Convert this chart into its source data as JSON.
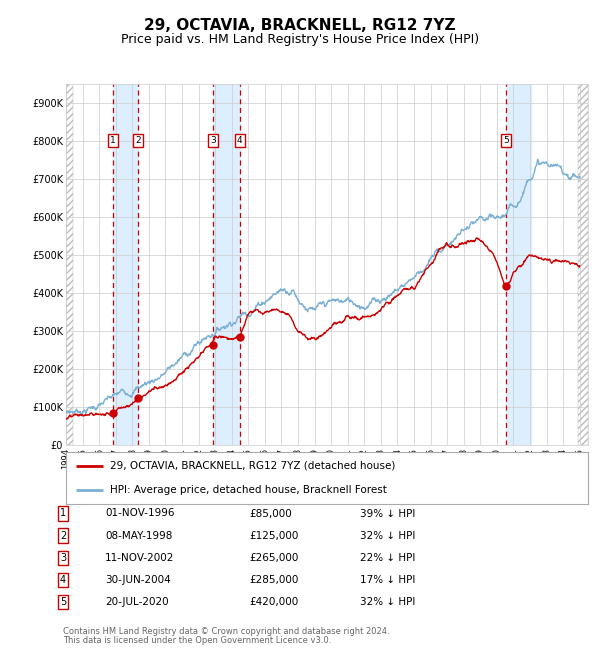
{
  "title": "29, OCTAVIA, BRACKNELL, RG12 7YZ",
  "subtitle": "Price paid vs. HM Land Registry's House Price Index (HPI)",
  "legend_red": "29, OCTAVIA, BRACKNELL, RG12 7YZ (detached house)",
  "legend_blue": "HPI: Average price, detached house, Bracknell Forest",
  "footer1": "Contains HM Land Registry data © Crown copyright and database right 2024.",
  "footer2": "This data is licensed under the Open Government Licence v3.0.",
  "transactions": [
    {
      "num": 1,
      "date": 1996.84,
      "price": 85000,
      "label": "01-NOV-1996",
      "pct": "39% ↓ HPI"
    },
    {
      "num": 2,
      "date": 1998.36,
      "price": 125000,
      "label": "08-MAY-1998",
      "pct": "32% ↓ HPI"
    },
    {
      "num": 3,
      "date": 2002.86,
      "price": 265000,
      "label": "11-NOV-2002",
      "pct": "22% ↓ HPI"
    },
    {
      "num": 4,
      "date": 2004.49,
      "price": 285000,
      "label": "30-JUN-2004",
      "pct": "17% ↓ HPI"
    },
    {
      "num": 5,
      "date": 2020.55,
      "price": 420000,
      "label": "20-JUL-2020",
      "pct": "32% ↓ HPI"
    }
  ],
  "xmin": 1994.0,
  "xmax": 2025.5,
  "ymin": 0,
  "ymax": 950000,
  "yticks": [
    0,
    100000,
    200000,
    300000,
    400000,
    500000,
    600000,
    700000,
    800000,
    900000
  ],
  "ytick_labels": [
    "£0",
    "£100K",
    "£200K",
    "£300K",
    "£400K",
    "£500K",
    "£600K",
    "£700K",
    "£800K",
    "£900K"
  ],
  "xticks": [
    1994,
    1995,
    1996,
    1997,
    1998,
    1999,
    2000,
    2001,
    2002,
    2003,
    2004,
    2005,
    2006,
    2007,
    2008,
    2009,
    2010,
    2011,
    2012,
    2013,
    2014,
    2015,
    2016,
    2017,
    2018,
    2019,
    2020,
    2021,
    2022,
    2023,
    2024,
    2025
  ],
  "red_color": "#cc0000",
  "blue_color": "#7ab0d4",
  "bg_color": "#ffffff",
  "grid_color": "#cccccc",
  "shade_color": "#ddeeff",
  "title_fontsize": 11,
  "subtitle_fontsize": 9,
  "hpi_knots_x": [
    1994,
    1995,
    1996,
    1997,
    1998,
    1999,
    2000,
    2001,
    2002,
    2003,
    2004,
    2005,
    2006,
    2007,
    2007.7,
    2008,
    2009,
    2009.5,
    2010,
    2011,
    2012,
    2013,
    2014,
    2015,
    2016,
    2017,
    2018,
    2019,
    2020,
    2021,
    2021.5,
    2022,
    2022.5,
    2023,
    2024,
    2025
  ],
  "hpi_knots_y": [
    85000,
    95000,
    108000,
    125000,
    150000,
    170000,
    195000,
    230000,
    270000,
    305000,
    335000,
    360000,
    390000,
    415000,
    420000,
    395000,
    355000,
    360000,
    370000,
    375000,
    375000,
    390000,
    415000,
    450000,
    490000,
    530000,
    565000,
    580000,
    580000,
    620000,
    660000,
    720000,
    750000,
    740000,
    720000,
    710000
  ],
  "red_knots_x": [
    1994,
    1995,
    1996,
    1996.84,
    1997,
    1998,
    1998.36,
    1999,
    2000,
    2001,
    2002,
    2002.86,
    2003,
    2004,
    2004.49,
    2005,
    2005.5,
    2006,
    2007,
    2007.5,
    2008,
    2009,
    2009.5,
    2010,
    2011,
    2012,
    2013,
    2014,
    2015,
    2016,
    2016.5,
    2017,
    2017.5,
    2018,
    2019,
    2020,
    2020.55,
    2021,
    2022,
    2023,
    2024,
    2025
  ],
  "red_knots_y": [
    70000,
    75000,
    80000,
    85000,
    100000,
    118000,
    125000,
    145000,
    165000,
    195000,
    225000,
    265000,
    280000,
    285000,
    285000,
    340000,
    360000,
    355000,
    360000,
    355000,
    310000,
    280000,
    290000,
    310000,
    330000,
    330000,
    355000,
    385000,
    415000,
    480000,
    520000,
    540000,
    530000,
    535000,
    540000,
    495000,
    420000,
    465000,
    500000,
    490000,
    475000,
    465000
  ]
}
